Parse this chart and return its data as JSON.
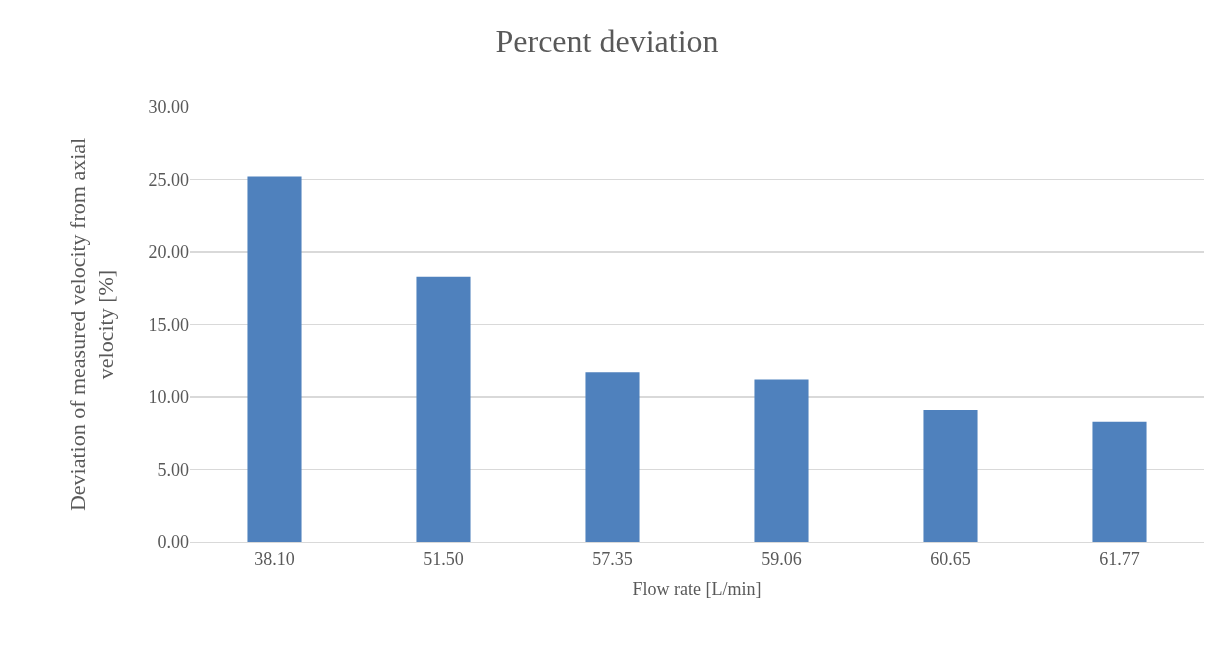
{
  "chart_data": {
    "type": "bar",
    "title": "Percent deviation",
    "xlabel": "Flow rate [L/min]",
    "ylabel": "Deviation of measured velocity from axial velocity [%]",
    "categories": [
      "38.10",
      "51.50",
      "57.35",
      "59.06",
      "60.65",
      "61.77"
    ],
    "values": [
      25.2,
      18.3,
      11.7,
      11.2,
      9.1,
      8.3
    ],
    "color": "#4f81bd",
    "ylim": [
      0,
      30
    ],
    "yticks": [
      {
        "value": 0,
        "label": "0.00"
      },
      {
        "value": 5,
        "label": "5.00"
      },
      {
        "value": 10,
        "label": "10.00"
      },
      {
        "value": 15,
        "label": "15.00"
      },
      {
        "value": 20,
        "label": "20.00"
      },
      {
        "value": 25,
        "label": "25.00"
      },
      {
        "value": 30,
        "label": "30.00"
      }
    ],
    "grid": "y"
  }
}
